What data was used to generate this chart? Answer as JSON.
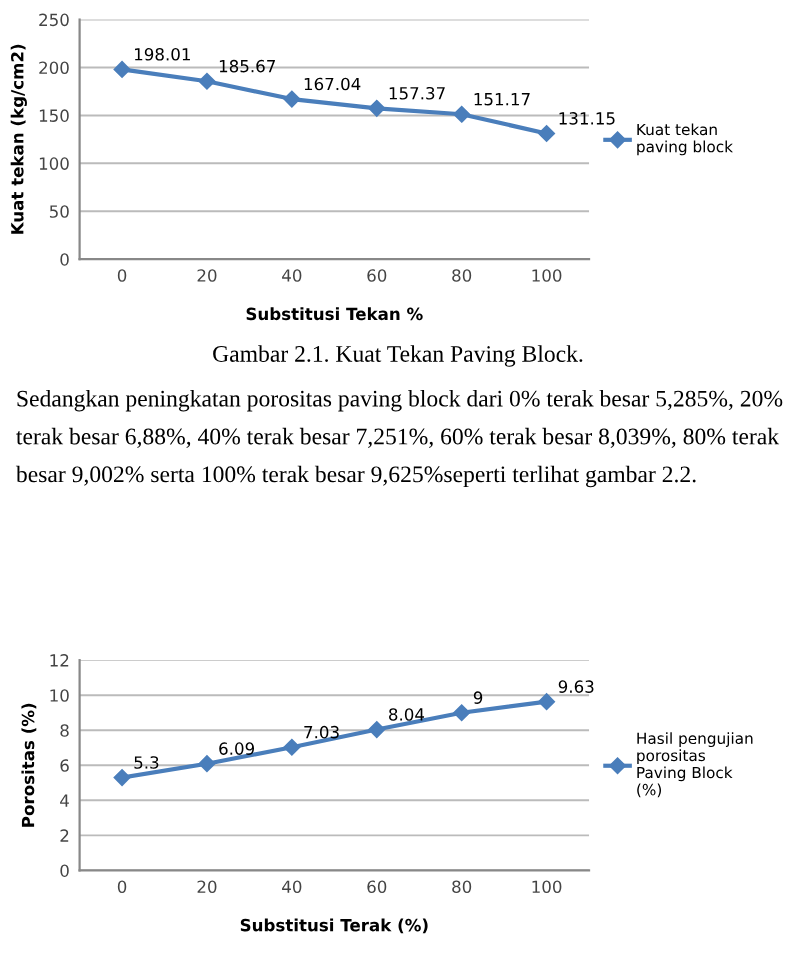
{
  "chart_data": [
    {
      "type": "line",
      "xlabel": "Substitusi Tekan %",
      "ylabel": "Kuat tekan (kg/cm2)",
      "categories": [
        "0",
        "20",
        "40",
        "60",
        "80",
        "100"
      ],
      "ylim": [
        0,
        250
      ],
      "yticks": [
        0,
        50,
        100,
        150,
        200,
        250
      ],
      "grid": "y",
      "legend": "right",
      "marker": "diamond",
      "line_style": "solid",
      "data_labels": true,
      "series": [
        {
          "name": "Kuat tekan paving block",
          "color": "#4a7ebb",
          "values": [
            198.01,
            185.67,
            167.04,
            157.37,
            151.17,
            131.15
          ]
        }
      ],
      "annotations": [
        "Gambar 2.1. Kuat Tekan Paving Block.",
        "Sedangkan peningkatan porositas paving block dari 0% terak besar 5,285%, 20% terak besar 6,88%, 40% terak besar 7,251%, 60% terak besar 8,039%, 80% terak besar 9,002% serta 100% terak besar 9,625%seperti terlihat gambar 2.2."
      ]
    },
    {
      "type": "line",
      "xlabel": "Substitusi Terak (%)",
      "ylabel": "Porositas (%)",
      "categories": [
        "0",
        "20",
        "40",
        "60",
        "80",
        "100"
      ],
      "ylim": [
        0,
        12
      ],
      "yticks": [
        0,
        2,
        4,
        6,
        8,
        10,
        12
      ],
      "grid": "y",
      "legend": "right",
      "marker": "diamond",
      "line_style": "solid",
      "data_labels": true,
      "series": [
        {
          "name": "Hasil pengujian porositas Paving Block (%)",
          "color": "#4a7ebb",
          "values": [
            5.3,
            6.09,
            7.03,
            8.04,
            9,
            9.63
          ]
        }
      ]
    }
  ]
}
